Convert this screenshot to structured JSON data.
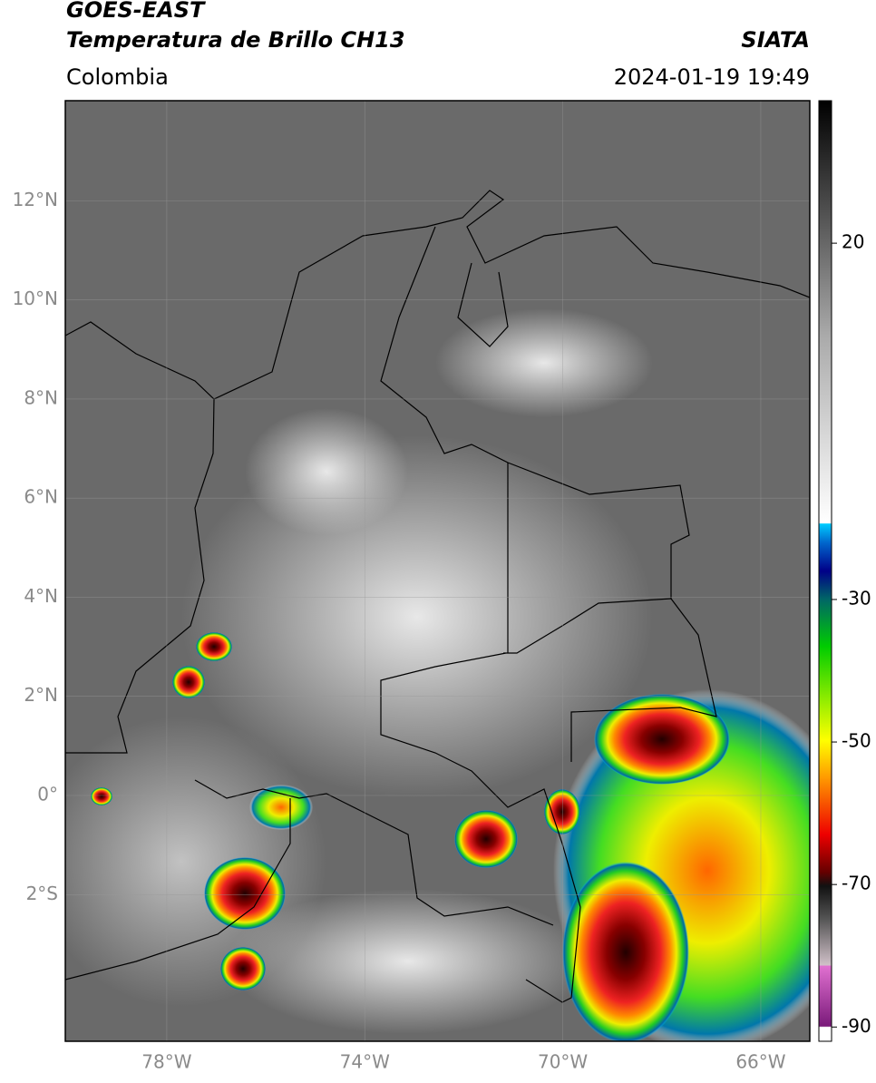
{
  "header": {
    "satellite": "GOES-EAST",
    "product": "Temperatura de Brillo CH13",
    "region": "Colombia",
    "source": "SIATA",
    "datetime": "2024-01-19 19:49"
  },
  "map": {
    "lonlim": [
      -80.05,
      -65.01
    ],
    "latlim": [
      -4.96,
      14.02
    ],
    "lat_ticks": [
      {
        "value": 12,
        "label": "12°N"
      },
      {
        "value": 10,
        "label": "10°N"
      },
      {
        "value": 8,
        "label": "8°N"
      },
      {
        "value": 6,
        "label": "6°N"
      },
      {
        "value": 4,
        "label": "4°N"
      },
      {
        "value": 2,
        "label": "2°N"
      },
      {
        "value": 0,
        "label": "0°"
      },
      {
        "value": -2,
        "label": "2°S"
      }
    ],
    "lon_ticks": [
      {
        "value": -78,
        "label": "78°W"
      },
      {
        "value": -74,
        "label": "74°W"
      },
      {
        "value": -70,
        "label": "70°W"
      },
      {
        "value": -66,
        "label": "66°W"
      }
    ]
  },
  "colorbar": {
    "lim": [
      -92,
      40
    ],
    "ticks": [
      20,
      -30,
      -50,
      -70,
      -90
    ]
  }
}
